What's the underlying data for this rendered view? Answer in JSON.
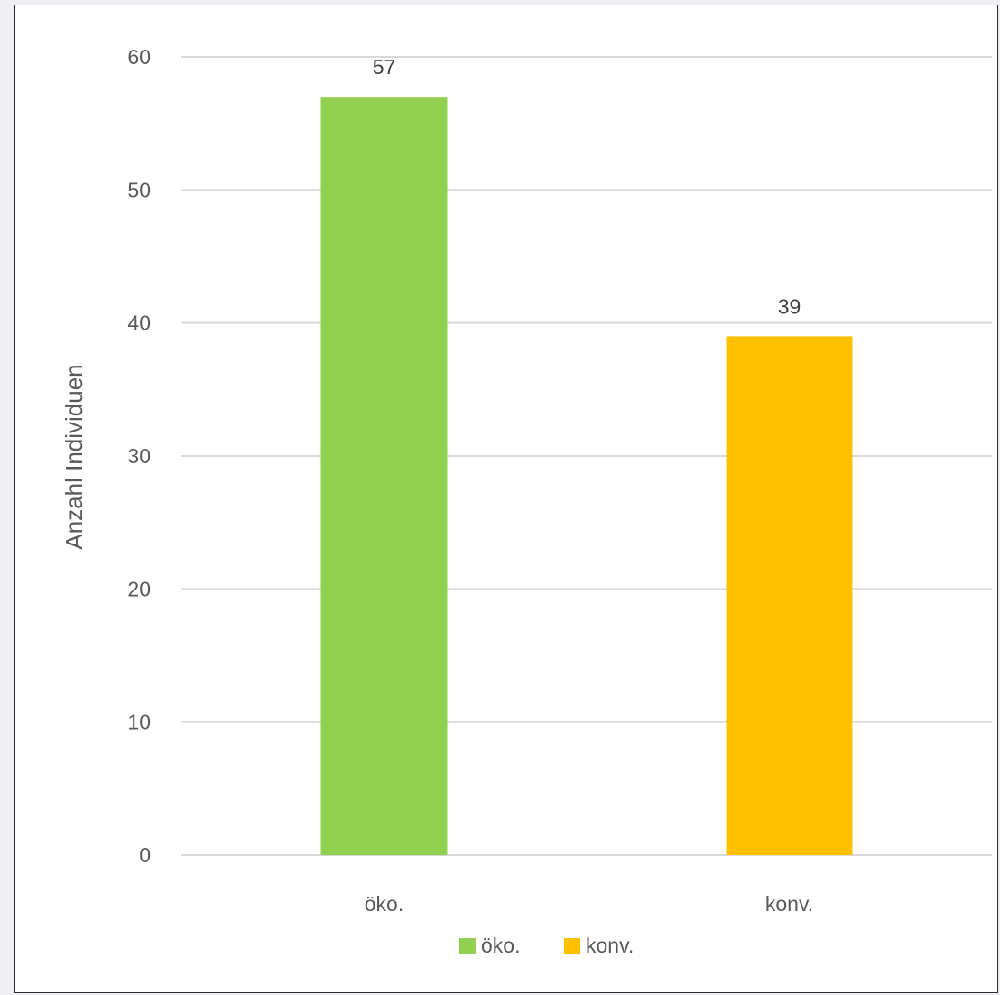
{
  "chart_data": {
    "type": "bar",
    "categories": [
      "öko.",
      "konv."
    ],
    "values": [
      57,
      39
    ],
    "colors": [
      "#92d050",
      "#ffc000"
    ],
    "data_labels": [
      "57",
      "39"
    ],
    "title": "",
    "xlabel": "",
    "ylabel": "Anzahl Individuen",
    "ylim": [
      0,
      60
    ],
    "yticks": [
      0,
      10,
      20,
      30,
      40,
      50,
      60
    ],
    "ytick_labels": [
      "0",
      "10",
      "20",
      "30",
      "40",
      "50",
      "60"
    ],
    "grid": true,
    "legend": {
      "placement": "bottom",
      "entries": [
        {
          "label": "öko.",
          "color": "#92d050"
        },
        {
          "label": "konv.",
          "color": "#ffc000"
        }
      ]
    }
  }
}
